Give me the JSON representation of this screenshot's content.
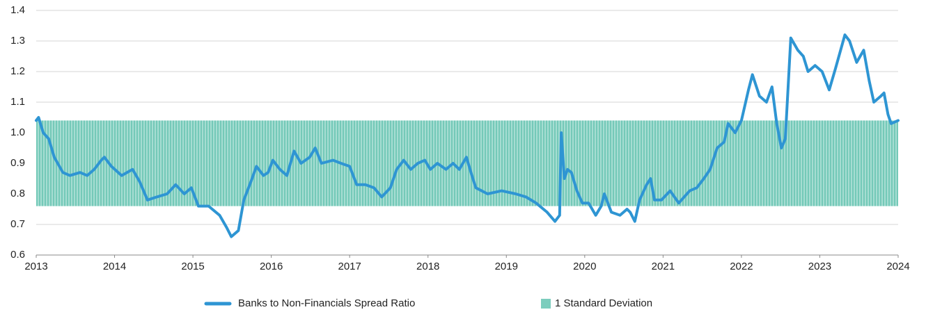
{
  "chart_data": {
    "type": "line",
    "x": [
      2013.0,
      2013.03,
      2013.09,
      2013.16,
      2013.23,
      2013.34,
      2013.43,
      2013.56,
      2013.65,
      2013.74,
      2013.83,
      2013.87,
      2013.96,
      2014.09,
      2014.23,
      2014.32,
      2014.42,
      2014.54,
      2014.67,
      2014.78,
      2014.89,
      2014.98,
      2015.07,
      2015.2,
      2015.34,
      2015.43,
      2015.49,
      2015.58,
      2015.65,
      2015.74,
      2015.81,
      2015.9,
      2015.96,
      2016.02,
      2016.11,
      2016.2,
      2016.29,
      2016.38,
      2016.49,
      2016.56,
      2016.64,
      2016.79,
      2016.89,
      2017.0,
      2017.09,
      2017.2,
      2017.31,
      2017.41,
      2017.52,
      2017.6,
      2017.69,
      2017.78,
      2017.87,
      2017.96,
      2018.03,
      2018.12,
      2018.23,
      2018.32,
      2018.4,
      2018.49,
      2018.56,
      2018.61,
      2018.76,
      2018.94,
      2019.12,
      2019.25,
      2019.38,
      2019.52,
      2019.62,
      2019.68,
      2019.7,
      2019.74,
      2019.78,
      2019.83,
      2019.9,
      2019.97,
      2020.05,
      2020.14,
      2020.21,
      2020.25,
      2020.34,
      2020.45,
      2020.54,
      2020.58,
      2020.64,
      2020.7,
      2020.79,
      2020.84,
      2020.89,
      2020.98,
      2021.09,
      2021.2,
      2021.34,
      2021.43,
      2021.52,
      2021.6,
      2021.69,
      2021.78,
      2021.83,
      2021.92,
      2022.0,
      2022.09,
      2022.14,
      2022.23,
      2022.32,
      2022.39,
      2022.45,
      2022.51,
      2022.56,
      2022.63,
      2022.72,
      2022.79,
      2022.85,
      2022.94,
      2023.03,
      2023.12,
      2023.2,
      2023.32,
      2023.38,
      2023.47,
      2023.56,
      2023.63,
      2023.69,
      2023.78,
      2023.82,
      2023.87,
      2023.91,
      2024.0
    ],
    "series": [
      {
        "name": "Banks to Non-Financials Spread Ratio",
        "color": "#2e95d3",
        "values": [
          1.04,
          1.05,
          1.0,
          0.98,
          0.92,
          0.87,
          0.86,
          0.87,
          0.86,
          0.88,
          0.91,
          0.92,
          0.89,
          0.86,
          0.88,
          0.84,
          0.78,
          0.79,
          0.8,
          0.83,
          0.8,
          0.82,
          0.76,
          0.76,
          0.73,
          0.69,
          0.66,
          0.68,
          0.78,
          0.84,
          0.89,
          0.86,
          0.87,
          0.91,
          0.88,
          0.86,
          0.94,
          0.9,
          0.92,
          0.95,
          0.9,
          0.91,
          0.9,
          0.89,
          0.83,
          0.83,
          0.82,
          0.79,
          0.82,
          0.88,
          0.91,
          0.88,
          0.9,
          0.91,
          0.88,
          0.9,
          0.88,
          0.9,
          0.88,
          0.92,
          0.86,
          0.82,
          0.8,
          0.81,
          0.8,
          0.79,
          0.77,
          0.74,
          0.71,
          0.73,
          1.0,
          0.85,
          0.88,
          0.87,
          0.81,
          0.77,
          0.77,
          0.73,
          0.76,
          0.8,
          0.74,
          0.73,
          0.75,
          0.74,
          0.71,
          0.78,
          0.83,
          0.85,
          0.78,
          0.78,
          0.81,
          0.77,
          0.81,
          0.82,
          0.85,
          0.88,
          0.95,
          0.97,
          1.03,
          1.0,
          1.04,
          1.14,
          1.19,
          1.12,
          1.1,
          1.15,
          1.03,
          0.95,
          0.98,
          1.31,
          1.27,
          1.25,
          1.2,
          1.22,
          1.2,
          1.14,
          1.21,
          1.32,
          1.3,
          1.23,
          1.27,
          1.17,
          1.1,
          1.12,
          1.13,
          1.06,
          1.03,
          1.04
        ]
      }
    ],
    "band": {
      "name": "1 Standard Deviation",
      "color": "#7ccdbd",
      "lower": 0.76,
      "upper": 1.04
    },
    "xlim": [
      2013,
      2024
    ],
    "xticks": [
      2013,
      2014,
      2015,
      2016,
      2017,
      2018,
      2019,
      2020,
      2021,
      2022,
      2023,
      2024
    ],
    "ylim": [
      0.6,
      1.4
    ],
    "yticks": [
      0.6,
      0.7,
      0.8,
      0.9,
      {
        "value": 1,
        "label": "1.0"
      },
      1.1,
      1.2,
      1.3,
      1.4
    ],
    "grid": true,
    "legend": "bottom"
  }
}
